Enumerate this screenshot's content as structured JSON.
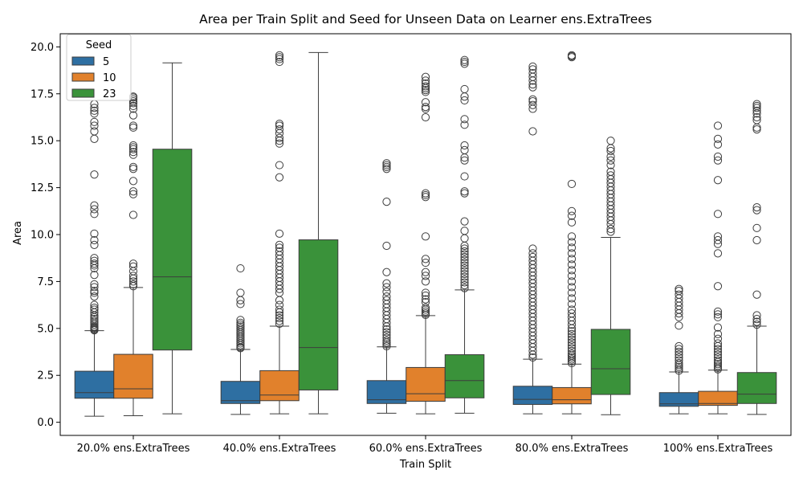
{
  "chart_data": {
    "type": "box",
    "title": "Area per Train Split and Seed for Unseen Data on Learner ens.ExtraTrees",
    "xlabel": "Train Split",
    "ylabel": "Area",
    "ylim": [
      -0.7,
      20.7
    ],
    "yticks": [
      0.0,
      2.5,
      5.0,
      7.5,
      10.0,
      12.5,
      15.0,
      17.5,
      20.0
    ],
    "ytick_labels": [
      "0.0",
      "2.5",
      "5.0",
      "7.5",
      "10.0",
      "12.5",
      "15.0",
      "17.5",
      "20.0"
    ],
    "grid": false,
    "legend": {
      "title": "Seed",
      "position": "top-left"
    },
    "categories": [
      "20.0% ens.ExtraTrees",
      "40.0% ens.ExtraTrees",
      "60.0% ens.ExtraTrees",
      "80.0% ens.ExtraTrees",
      "100% ens.ExtraTrees"
    ],
    "series": [
      {
        "name": "5",
        "color": "#2e6fa2",
        "boxes": [
          {
            "whislo": 0.32,
            "q1": 1.28,
            "med": 1.58,
            "q3": 2.72,
            "whishi": 4.88,
            "fliers": [
              4.9,
              4.95,
              5.0,
              5.05,
              5.1,
              5.2,
              5.3,
              5.4,
              5.5,
              5.6,
              5.7,
              5.85,
              6.0,
              6.1,
              6.25,
              6.7,
              6.9,
              7.0,
              7.2,
              7.35,
              7.85,
              8.2,
              8.35,
              8.45,
              8.6,
              8.75,
              9.45,
              9.7,
              10.05,
              11.1,
              11.35,
              11.55,
              13.2,
              15.1,
              15.5,
              15.8,
              16.0,
              16.45,
              16.6,
              16.75,
              16.95
            ]
          },
          {
            "whislo": 0.42,
            "q1": 1.0,
            "med": 1.15,
            "q3": 2.18,
            "whishi": 3.88,
            "fliers": [
              3.95,
              4.0,
              4.1,
              4.2,
              4.3,
              4.4,
              4.5,
              4.6,
              4.7,
              4.8,
              4.9,
              5.0,
              5.1,
              5.2,
              5.3,
              5.45,
              6.3,
              6.5,
              6.9,
              8.2
            ]
          },
          {
            "whislo": 0.48,
            "q1": 1.0,
            "med": 1.2,
            "q3": 2.22,
            "whishi": 4.02,
            "fliers": [
              4.05,
              4.15,
              4.25,
              4.35,
              4.5,
              4.65,
              4.8,
              4.95,
              5.1,
              5.3,
              5.5,
              5.7,
              5.9,
              6.1,
              6.3,
              6.5,
              6.7,
              6.95,
              7.2,
              7.4,
              8.0,
              9.4,
              11.75,
              13.5,
              13.6,
              13.7,
              13.8
            ]
          },
          {
            "whislo": 0.45,
            "q1": 0.95,
            "med": 1.22,
            "q3": 1.92,
            "whishi": 3.36,
            "fliers": [
              3.45,
              3.6,
              3.8,
              4.0,
              4.2,
              4.4,
              4.6,
              4.8,
              5.0,
              5.2,
              5.4,
              5.6,
              5.8,
              6.0,
              6.2,
              6.4,
              6.6,
              6.8,
              7.0,
              7.2,
              7.4,
              7.6,
              7.8,
              8.0,
              8.2,
              8.4,
              8.6,
              8.8,
              9.0,
              9.25,
              15.5,
              16.7,
              16.9,
              17.1,
              17.2,
              17.85,
              18.0,
              18.2,
              18.4,
              18.6,
              18.8,
              18.95
            ]
          },
          {
            "whislo": 0.45,
            "q1": 0.85,
            "med": 0.98,
            "q3": 1.58,
            "whishi": 2.68,
            "fliers": [
              2.75,
              2.85,
              2.95,
              3.05,
              3.15,
              3.3,
              3.45,
              3.6,
              3.75,
              3.9,
              4.05,
              5.15,
              5.6,
              5.8,
              6.0,
              6.2,
              6.4,
              6.6,
              6.8,
              7.0,
              7.1
            ]
          }
        ]
      },
      {
        "name": "10",
        "color": "#e1812c",
        "boxes": [
          {
            "whislo": 0.35,
            "q1": 1.28,
            "med": 1.78,
            "q3": 3.62,
            "whishi": 7.18,
            "fliers": [
              7.25,
              7.35,
              7.5,
              7.65,
              7.8,
              8.05,
              8.3,
              8.45,
              11.05,
              12.15,
              12.3,
              12.85,
              13.5,
              13.6,
              14.25,
              14.4,
              14.55,
              14.65,
              14.75,
              15.7,
              15.8,
              16.35,
              16.7,
              16.85,
              17.0,
              17.1,
              17.2,
              17.3,
              17.35
            ]
          },
          {
            "whislo": 0.45,
            "q1": 1.15,
            "med": 1.45,
            "q3": 2.75,
            "whishi": 5.12,
            "fliers": [
              5.25,
              5.4,
              5.55,
              5.7,
              5.85,
              6.0,
              6.25,
              6.5,
              6.9,
              7.1,
              7.3,
              7.5,
              7.7,
              7.9,
              8.1,
              8.3,
              8.5,
              8.7,
              8.9,
              9.1,
              9.3,
              9.45,
              10.05,
              13.05,
              13.7,
              14.85,
              15.0,
              15.15,
              15.4,
              15.6,
              15.8,
              15.9,
              19.2,
              19.35,
              19.45,
              19.55
            ]
          },
          {
            "whislo": 0.45,
            "q1": 1.12,
            "med": 1.52,
            "q3": 2.92,
            "whishi": 5.68,
            "fliers": [
              5.72,
              5.8,
              5.9,
              6.0,
              6.1,
              6.4,
              6.55,
              6.75,
              6.9,
              7.5,
              7.8,
              8.0,
              8.5,
              8.7,
              9.9,
              12.0,
              12.1,
              12.2,
              16.25,
              16.7,
              16.8,
              17.05,
              17.6,
              17.7,
              17.8,
              17.9,
              18.05,
              18.2,
              18.4
            ]
          },
          {
            "whislo": 0.45,
            "q1": 0.98,
            "med": 1.2,
            "q3": 1.85,
            "whishi": 3.1,
            "fliers": [
              3.15,
              3.25,
              3.35,
              3.45,
              3.55,
              3.65,
              3.8,
              3.95,
              4.1,
              4.25,
              4.4,
              4.55,
              4.7,
              4.85,
              5.0,
              5.2,
              5.4,
              5.6,
              5.8,
              6.0,
              6.3,
              6.6,
              6.9,
              7.2,
              7.5,
              7.8,
              8.1,
              8.4,
              8.7,
              9.0,
              9.3,
              9.6,
              9.9,
              10.65,
              11.0,
              11.25,
              12.7,
              19.45,
              19.5,
              19.55
            ]
          },
          {
            "whislo": 0.45,
            "q1": 0.9,
            "med": 1.0,
            "q3": 1.65,
            "whishi": 2.78,
            "fliers": [
              2.82,
              2.9,
              3.0,
              3.1,
              3.2,
              3.3,
              3.45,
              3.6,
              3.75,
              3.9,
              4.05,
              4.2,
              4.45,
              4.7,
              5.05,
              5.6,
              5.75,
              5.9,
              7.25,
              9.0,
              9.5,
              9.7,
              9.9,
              11.1,
              12.9,
              13.95,
              14.15,
              14.8,
              15.1,
              15.8
            ]
          }
        ]
      },
      {
        "name": "23",
        "color": "#3a923a",
        "boxes": [
          {
            "whislo": 0.45,
            "q1": 3.85,
            "med": 7.75,
            "q3": 14.55,
            "whishi": 19.15,
            "fliers": []
          },
          {
            "whislo": 0.45,
            "q1": 1.72,
            "med": 3.98,
            "q3": 9.72,
            "whishi": 19.7,
            "fliers": []
          },
          {
            "whislo": 0.48,
            "q1": 1.3,
            "med": 2.22,
            "q3": 3.6,
            "whishi": 7.05,
            "fliers": [
              7.15,
              7.3,
              7.45,
              7.6,
              7.75,
              7.9,
              8.05,
              8.2,
              8.35,
              8.5,
              8.65,
              8.8,
              8.95,
              9.1,
              9.25,
              9.4,
              9.8,
              10.2,
              10.7,
              12.2,
              12.3,
              13.1,
              13.95,
              14.1,
              14.5,
              14.75,
              15.85,
              16.15,
              17.15,
              17.35,
              17.75,
              19.1,
              19.2,
              19.3
            ]
          },
          {
            "whislo": 0.4,
            "q1": 1.48,
            "med": 2.85,
            "q3": 4.95,
            "whishi": 9.85,
            "fliers": [
              10.15,
              10.3,
              10.55,
              10.75,
              10.95,
              11.15,
              11.35,
              11.55,
              11.75,
              11.95,
              12.15,
              12.35,
              12.55,
              12.75,
              12.95,
              13.15,
              13.35,
              13.7,
              13.95,
              14.15,
              14.45,
              14.6,
              15.0
            ]
          },
          {
            "whislo": 0.42,
            "q1": 1.0,
            "med": 1.5,
            "q3": 2.65,
            "whishi": 5.12,
            "fliers": [
              5.2,
              5.35,
              5.5,
              5.7,
              6.8,
              9.7,
              10.35,
              11.3,
              11.45,
              15.6,
              15.7,
              16.1,
              16.25,
              16.45,
              16.6,
              16.75,
              16.85,
              16.95
            ]
          }
        ]
      }
    ]
  }
}
